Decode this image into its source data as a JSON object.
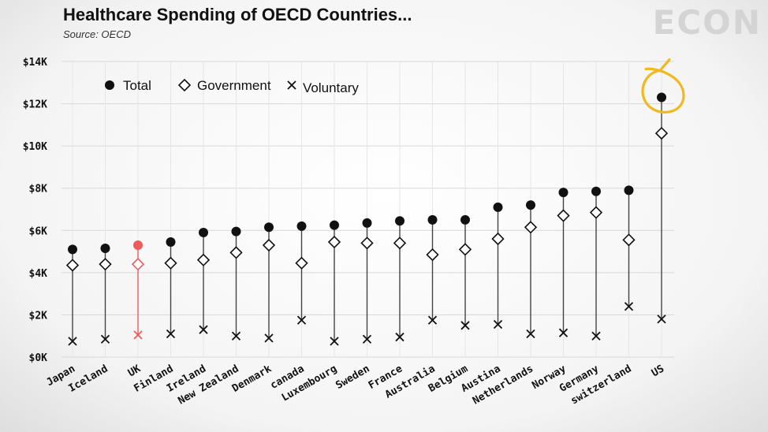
{
  "header": {
    "title": "Healthcare Spending of OECD Countries...",
    "source": "Source: OECD",
    "brand": "ECON"
  },
  "colors": {
    "marker": "#111111",
    "highlight": "#f05a5a",
    "annotation": "#f2b81e",
    "grid": "#d8d8d8"
  },
  "chart_data": {
    "type": "scatter",
    "title": "Healthcare Spending of OECD Countries...",
    "xlabel": "",
    "ylabel": "",
    "ylim": [
      0,
      14000
    ],
    "yticks": [
      0,
      2000,
      4000,
      6000,
      8000,
      10000,
      12000,
      14000
    ],
    "ytick_labels": [
      "$0K",
      "$2K",
      "$4K",
      "$6K",
      "$8K",
      "$10K",
      "$12K",
      "$14K"
    ],
    "grid": true,
    "legend_position": "top-left",
    "highlight_category": "UK",
    "annotated_category": "US",
    "categories": [
      "Japan",
      "Iceland",
      "UK",
      "Finland",
      "Ireland",
      "New Zealand",
      "Denmark",
      "canada",
      "Luxembourg",
      "Sweden",
      "France",
      "Australia",
      "Belgium",
      "Austina",
      "Netherlands",
      "Norway",
      "Germany",
      "switzerland",
      "US"
    ],
    "series": [
      {
        "name": "Total",
        "marker": "circle",
        "values": [
          5100,
          5150,
          5300,
          5450,
          5900,
          5950,
          6150,
          6200,
          6250,
          6350,
          6450,
          6500,
          6500,
          7100,
          7200,
          7800,
          7850,
          7900,
          12300
        ]
      },
      {
        "name": "Government",
        "marker": "diamond",
        "values": [
          4350,
          4400,
          4400,
          4450,
          4600,
          4950,
          5300,
          4450,
          5450,
          5400,
          5400,
          4850,
          5100,
          5600,
          6150,
          6700,
          6850,
          5550,
          10600
        ]
      },
      {
        "name": "Voluntary",
        "marker": "x",
        "values": [
          750,
          850,
          1050,
          1100,
          1300,
          1000,
          900,
          1750,
          750,
          850,
          950,
          1750,
          1500,
          1550,
          1100,
          1150,
          1000,
          2400,
          1800
        ]
      }
    ]
  }
}
